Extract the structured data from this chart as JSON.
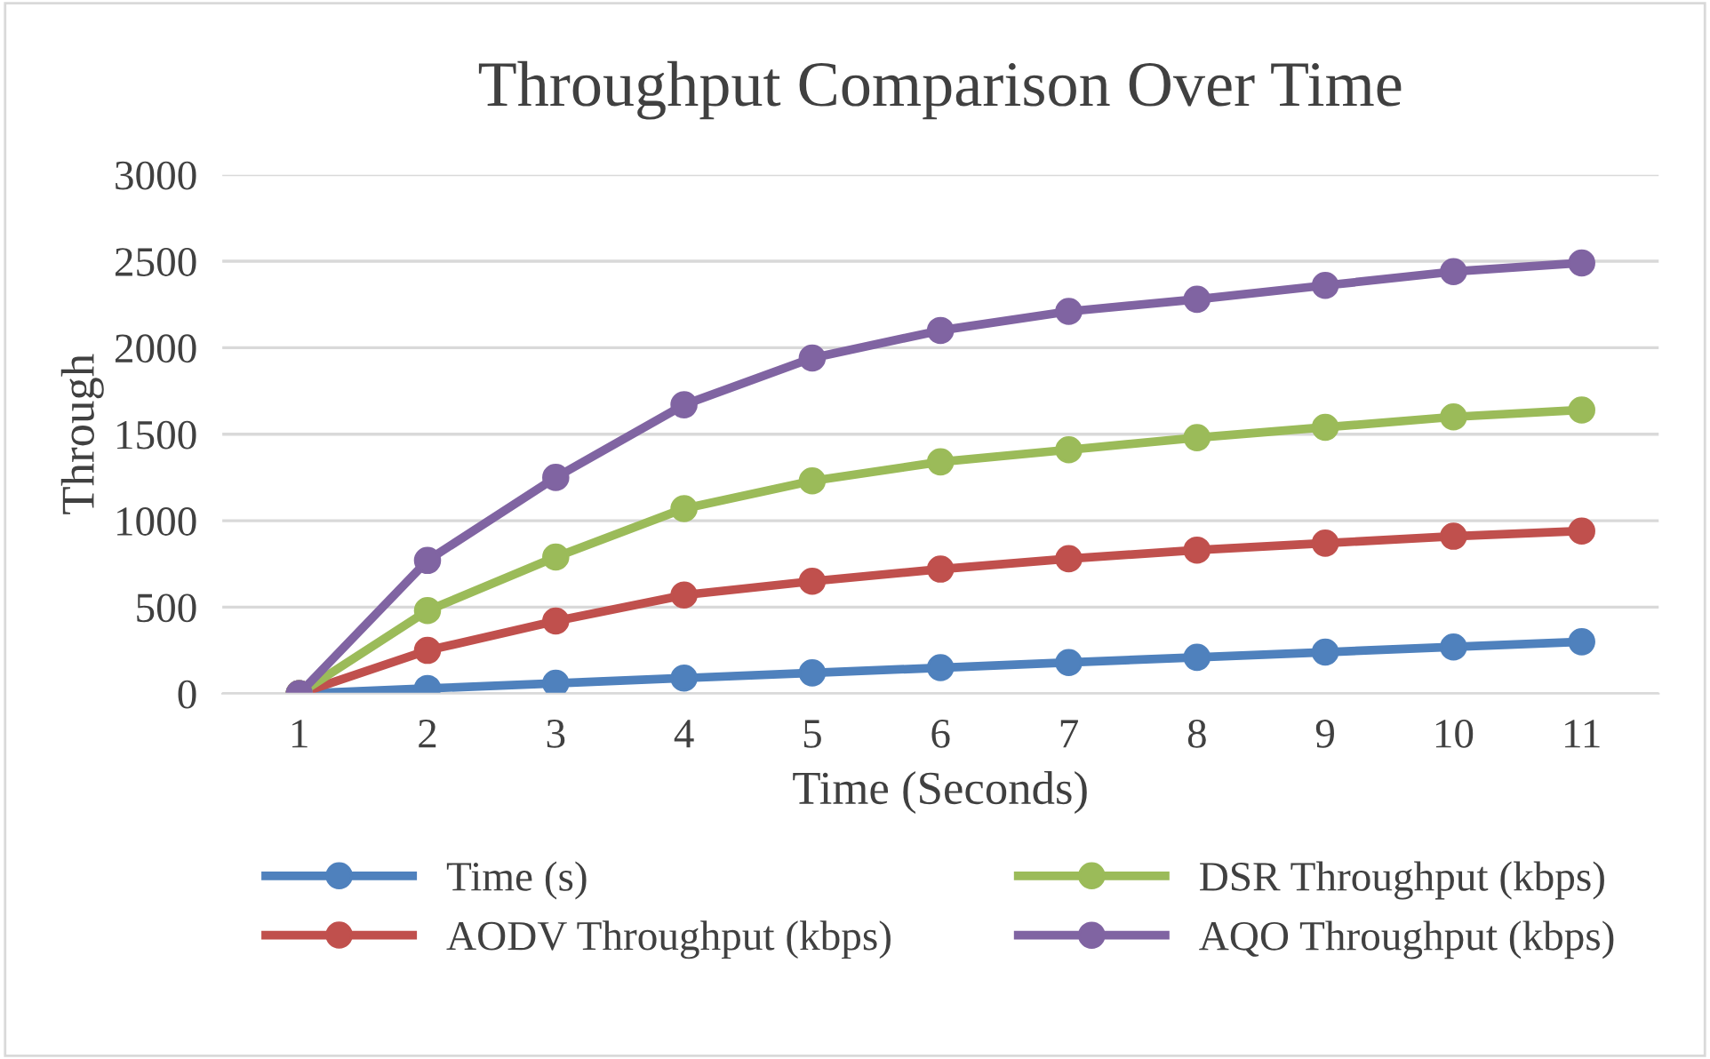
{
  "chart_data": {
    "type": "line",
    "title": "Throughput Comparison Over Time",
    "xlabel": "Time (Seconds)",
    "ylabel": "Through",
    "categories": [
      "1",
      "2",
      "3",
      "4",
      "5",
      "6",
      "7",
      "8",
      "9",
      "10",
      "11"
    ],
    "series": [
      {
        "name": "Time (s)",
        "color": "#4f81bd",
        "values": [
          0,
          30,
          60,
          90,
          120,
          150,
          180,
          210,
          240,
          270,
          300
        ]
      },
      {
        "name": "AODV Throughput (kbps)",
        "color": "#c0504d",
        "values": [
          0,
          250,
          420,
          570,
          650,
          720,
          780,
          830,
          870,
          910,
          940
        ]
      },
      {
        "name": "DSR Throughput (kbps)",
        "color": "#9bbb59",
        "values": [
          0,
          480,
          790,
          1070,
          1230,
          1340,
          1410,
          1480,
          1540,
          1600,
          1640
        ]
      },
      {
        "name": "AQO Throughput (kbps)",
        "color": "#8064a2",
        "values": [
          0,
          770,
          1250,
          1670,
          1940,
          2100,
          2210,
          2280,
          2360,
          2440,
          2490
        ]
      }
    ],
    "ylim": [
      0,
      3000
    ],
    "yticks": [
      0,
      500,
      1000,
      1500,
      2000,
      2500,
      3000
    ],
    "grid": "y",
    "legend": "bottom",
    "marker": "circle",
    "line_style": "solid"
  }
}
